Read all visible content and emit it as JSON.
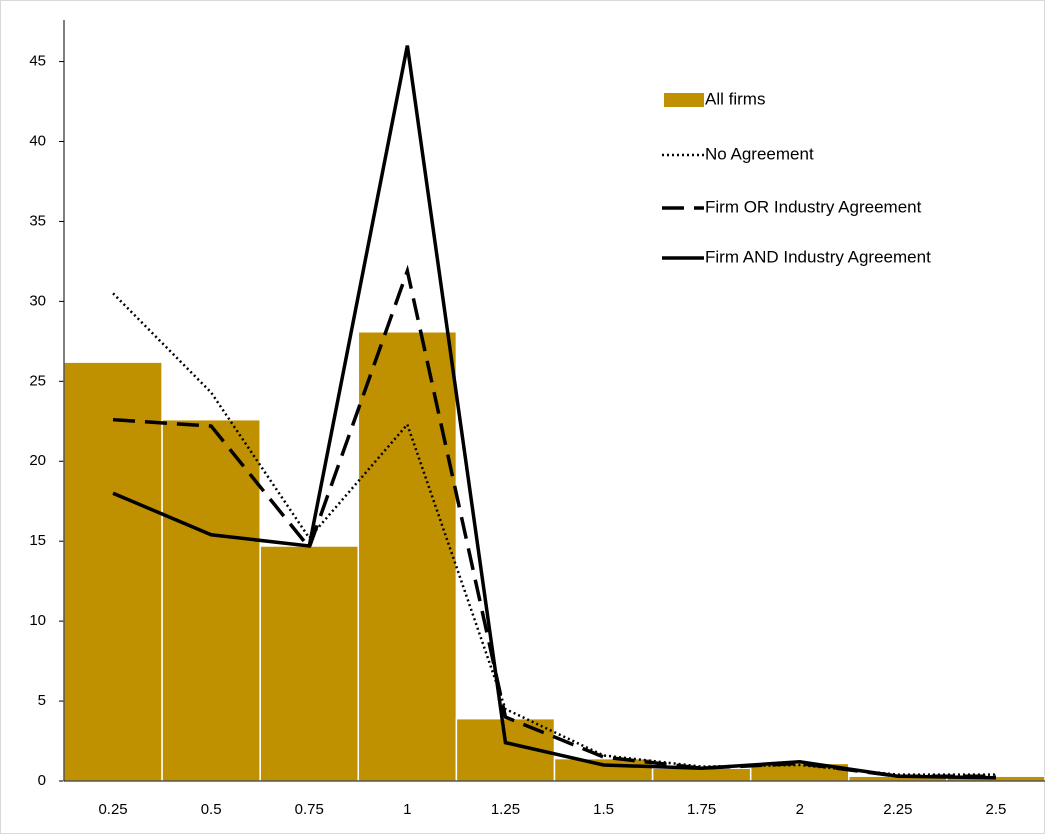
{
  "chart_data": {
    "type": "bar",
    "categories": [
      "0.25",
      "0.5",
      "0.75",
      "1",
      "1.25",
      "1.5",
      "1.75",
      "2",
      "2.25",
      "2.5"
    ],
    "series": [
      {
        "name": "All firms",
        "type": "bar",
        "color": "#bf9000",
        "values": [
          26.2,
          22.6,
          14.7,
          28.1,
          3.9,
          1.4,
          0.8,
          1.1,
          0.3,
          0.3
        ]
      },
      {
        "name": "No Agreement",
        "type": "line",
        "dash": "dotted",
        "color": "#000000",
        "values": [
          30.5,
          24.3,
          15.2,
          22.3,
          4.5,
          1.6,
          0.9,
          1.0,
          0.4,
          0.4
        ]
      },
      {
        "name": "Firm OR Industry Agreement",
        "type": "line",
        "dash": "dashed",
        "color": "#000000",
        "values": [
          22.6,
          22.2,
          14.6,
          31.9,
          4.0,
          1.5,
          0.8,
          1.1,
          0.3,
          0.3
        ]
      },
      {
        "name": "Firm AND Industry Agreement",
        "type": "line",
        "dash": "solid",
        "color": "#000000",
        "values": [
          18.0,
          15.4,
          14.7,
          46.0,
          2.4,
          1.0,
          0.8,
          1.2,
          0.3,
          0.2
        ]
      }
    ],
    "ylim": [
      0,
      47.6
    ],
    "yticks": [
      0,
      5,
      10,
      15,
      20,
      25,
      30,
      35,
      40,
      45
    ],
    "grid": false
  }
}
